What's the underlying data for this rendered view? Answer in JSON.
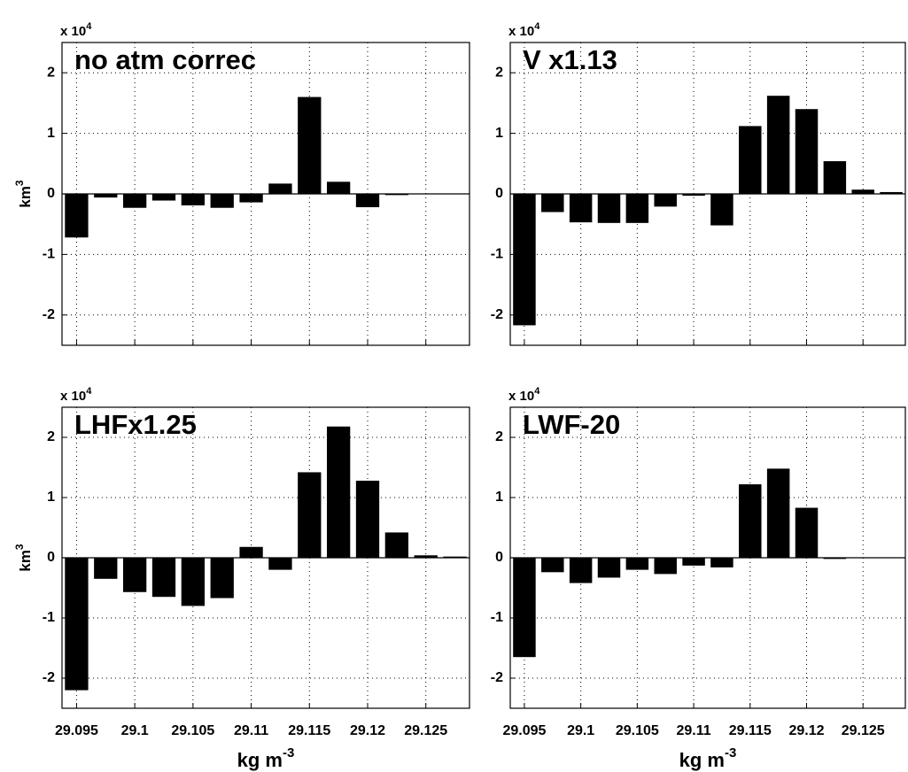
{
  "chart_data": [
    {
      "type": "bar",
      "title": "no atm correc",
      "y_multiplier": {
        "base": "x 10",
        "exponent": "4"
      },
      "ylabel": {
        "base": "km",
        "exponent": "3"
      },
      "color": "#000000",
      "grid": true,
      "x": [
        29.095,
        29.0975,
        29.1,
        29.1025,
        29.105,
        29.1075,
        29.11,
        29.1125,
        29.115,
        29.1175,
        29.12,
        29.1225,
        29.125,
        29.1275
      ],
      "values": [
        -0.72,
        -0.06,
        -0.23,
        -0.11,
        -0.19,
        -0.23,
        -0.14,
        0.17,
        1.6,
        0.2,
        -0.22,
        -0.02,
        0,
        0
      ],
      "xlim": [
        29.09375,
        29.12875
      ],
      "xticks": [
        29.095,
        29.1,
        29.105,
        29.11,
        29.115,
        29.12,
        29.125
      ],
      "ylim": [
        -2.5,
        2.5
      ],
      "yticks": [
        -2,
        -1,
        0,
        1,
        2
      ]
    },
    {
      "type": "bar",
      "title": "V x1.13",
      "y_multiplier": {
        "base": "x 10",
        "exponent": "4"
      },
      "color": "#000000",
      "grid": true,
      "x": [
        29.095,
        29.0975,
        29.1,
        29.1025,
        29.105,
        29.1075,
        29.11,
        29.1125,
        29.115,
        29.1175,
        29.12,
        29.1225,
        29.125,
        29.1275
      ],
      "values": [
        -2.17,
        -0.3,
        -0.47,
        -0.48,
        -0.48,
        -0.21,
        -0.03,
        -0.52,
        1.12,
        1.62,
        1.4,
        0.54,
        0.07,
        0.03
      ],
      "xlim": [
        29.09375,
        29.12875
      ],
      "xticks": [
        29.095,
        29.1,
        29.105,
        29.11,
        29.115,
        29.12,
        29.125
      ],
      "ylim": [
        -2.5,
        2.5
      ],
      "yticks": [
        -2,
        -1,
        0,
        1,
        2
      ]
    },
    {
      "type": "bar",
      "title": "LHFx1.25",
      "y_multiplier": {
        "base": "x 10",
        "exponent": "4"
      },
      "ylabel": {
        "base": "km",
        "exponent": "3"
      },
      "xlabel": {
        "base": "kg m",
        "exponent": "-3"
      },
      "color": "#000000",
      "grid": true,
      "x": [
        29.095,
        29.0975,
        29.1,
        29.1025,
        29.105,
        29.1075,
        29.11,
        29.1125,
        29.115,
        29.1175,
        29.12,
        29.1225,
        29.125,
        29.1275
      ],
      "values": [
        -2.2,
        -0.35,
        -0.57,
        -0.65,
        -0.8,
        -0.67,
        0.18,
        -0.2,
        1.42,
        2.18,
        1.28,
        0.42,
        0.04,
        0.02
      ],
      "xlim": [
        29.09375,
        29.12875
      ],
      "xticks": [
        29.095,
        29.1,
        29.105,
        29.11,
        29.115,
        29.12,
        29.125
      ],
      "ylim": [
        -2.5,
        2.5
      ],
      "yticks": [
        -2,
        -1,
        0,
        1,
        2
      ]
    },
    {
      "type": "bar",
      "title": "LWF-20",
      "y_multiplier": {
        "base": "x 10",
        "exponent": "4"
      },
      "xlabel": {
        "base": "kg m",
        "exponent": "-3"
      },
      "color": "#000000",
      "grid": true,
      "x": [
        29.095,
        29.0975,
        29.1,
        29.1025,
        29.105,
        29.1075,
        29.11,
        29.1125,
        29.115,
        29.1175,
        29.12,
        29.1225,
        29.125,
        29.1275
      ],
      "values": [
        -1.65,
        -0.24,
        -0.42,
        -0.33,
        -0.2,
        -0.27,
        -0.13,
        -0.16,
        1.22,
        1.48,
        0.83,
        -0.02,
        0,
        0
      ],
      "xlim": [
        29.09375,
        29.12875
      ],
      "xticks": [
        29.095,
        29.1,
        29.105,
        29.11,
        29.115,
        29.12,
        29.125
      ],
      "ylim": [
        -2.5,
        2.5
      ],
      "yticks": [
        -2,
        -1,
        0,
        1,
        2
      ]
    }
  ]
}
